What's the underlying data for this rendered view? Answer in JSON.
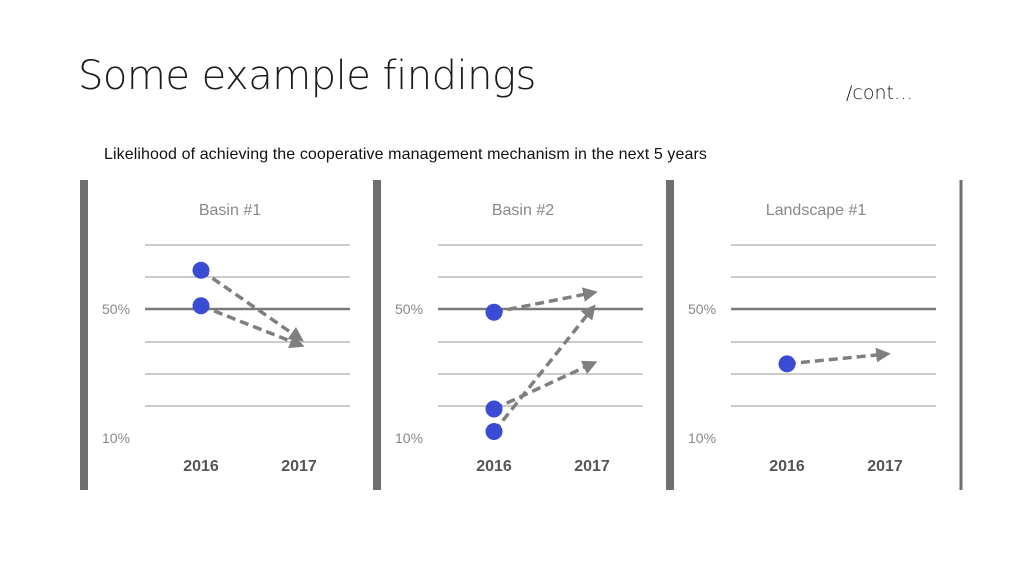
{
  "slide": {
    "title": "Some example findings",
    "cont": "/cont…"
  },
  "colors": {
    "point": "#3a4bd6",
    "arrow": "#7f7f7f",
    "divider": "#6f6f6f",
    "gridline": "#9a9a9a",
    "midline": "#7a7a7a",
    "label": "#888888",
    "axis_year": "#555555"
  },
  "chart_data": {
    "type": "scatter",
    "title": "Likelihood of achieving the cooperative management mechanism in the next 5 years",
    "y_tick_labels": [
      "50%",
      "10%"
    ],
    "x_categories": [
      "2016",
      "2017"
    ],
    "ylim": [
      10,
      90
    ],
    "panels": [
      {
        "name": "Basin #1",
        "points": [
          {
            "x": "2016",
            "y": 62
          },
          {
            "x": "2016",
            "y": 51
          }
        ],
        "arrows": [
          {
            "from": [
              "2016",
              62
            ],
            "to": [
              "2017",
              41
            ]
          },
          {
            "from": [
              "2016",
              51
            ],
            "to": [
              "2017",
              39
            ]
          }
        ]
      },
      {
        "name": "Basin #2",
        "points": [
          {
            "x": "2016",
            "y": 49
          },
          {
            "x": "2016",
            "y": 19
          },
          {
            "x": "2016",
            "y": 12
          }
        ],
        "arrows": [
          {
            "from": [
              "2016",
              49
            ],
            "to": [
              "2017",
              55
            ]
          },
          {
            "from": [
              "2016",
              19
            ],
            "to": [
              "2017",
              33
            ]
          },
          {
            "from": [
              "2016",
              12
            ],
            "to": [
              "2017",
              50
            ]
          }
        ]
      },
      {
        "name": "Landscape #1",
        "points": [
          {
            "x": "2016",
            "y": 33
          }
        ],
        "arrows": [
          {
            "from": [
              "2016",
              33
            ],
            "to": [
              "2017",
              36
            ]
          }
        ]
      }
    ]
  }
}
